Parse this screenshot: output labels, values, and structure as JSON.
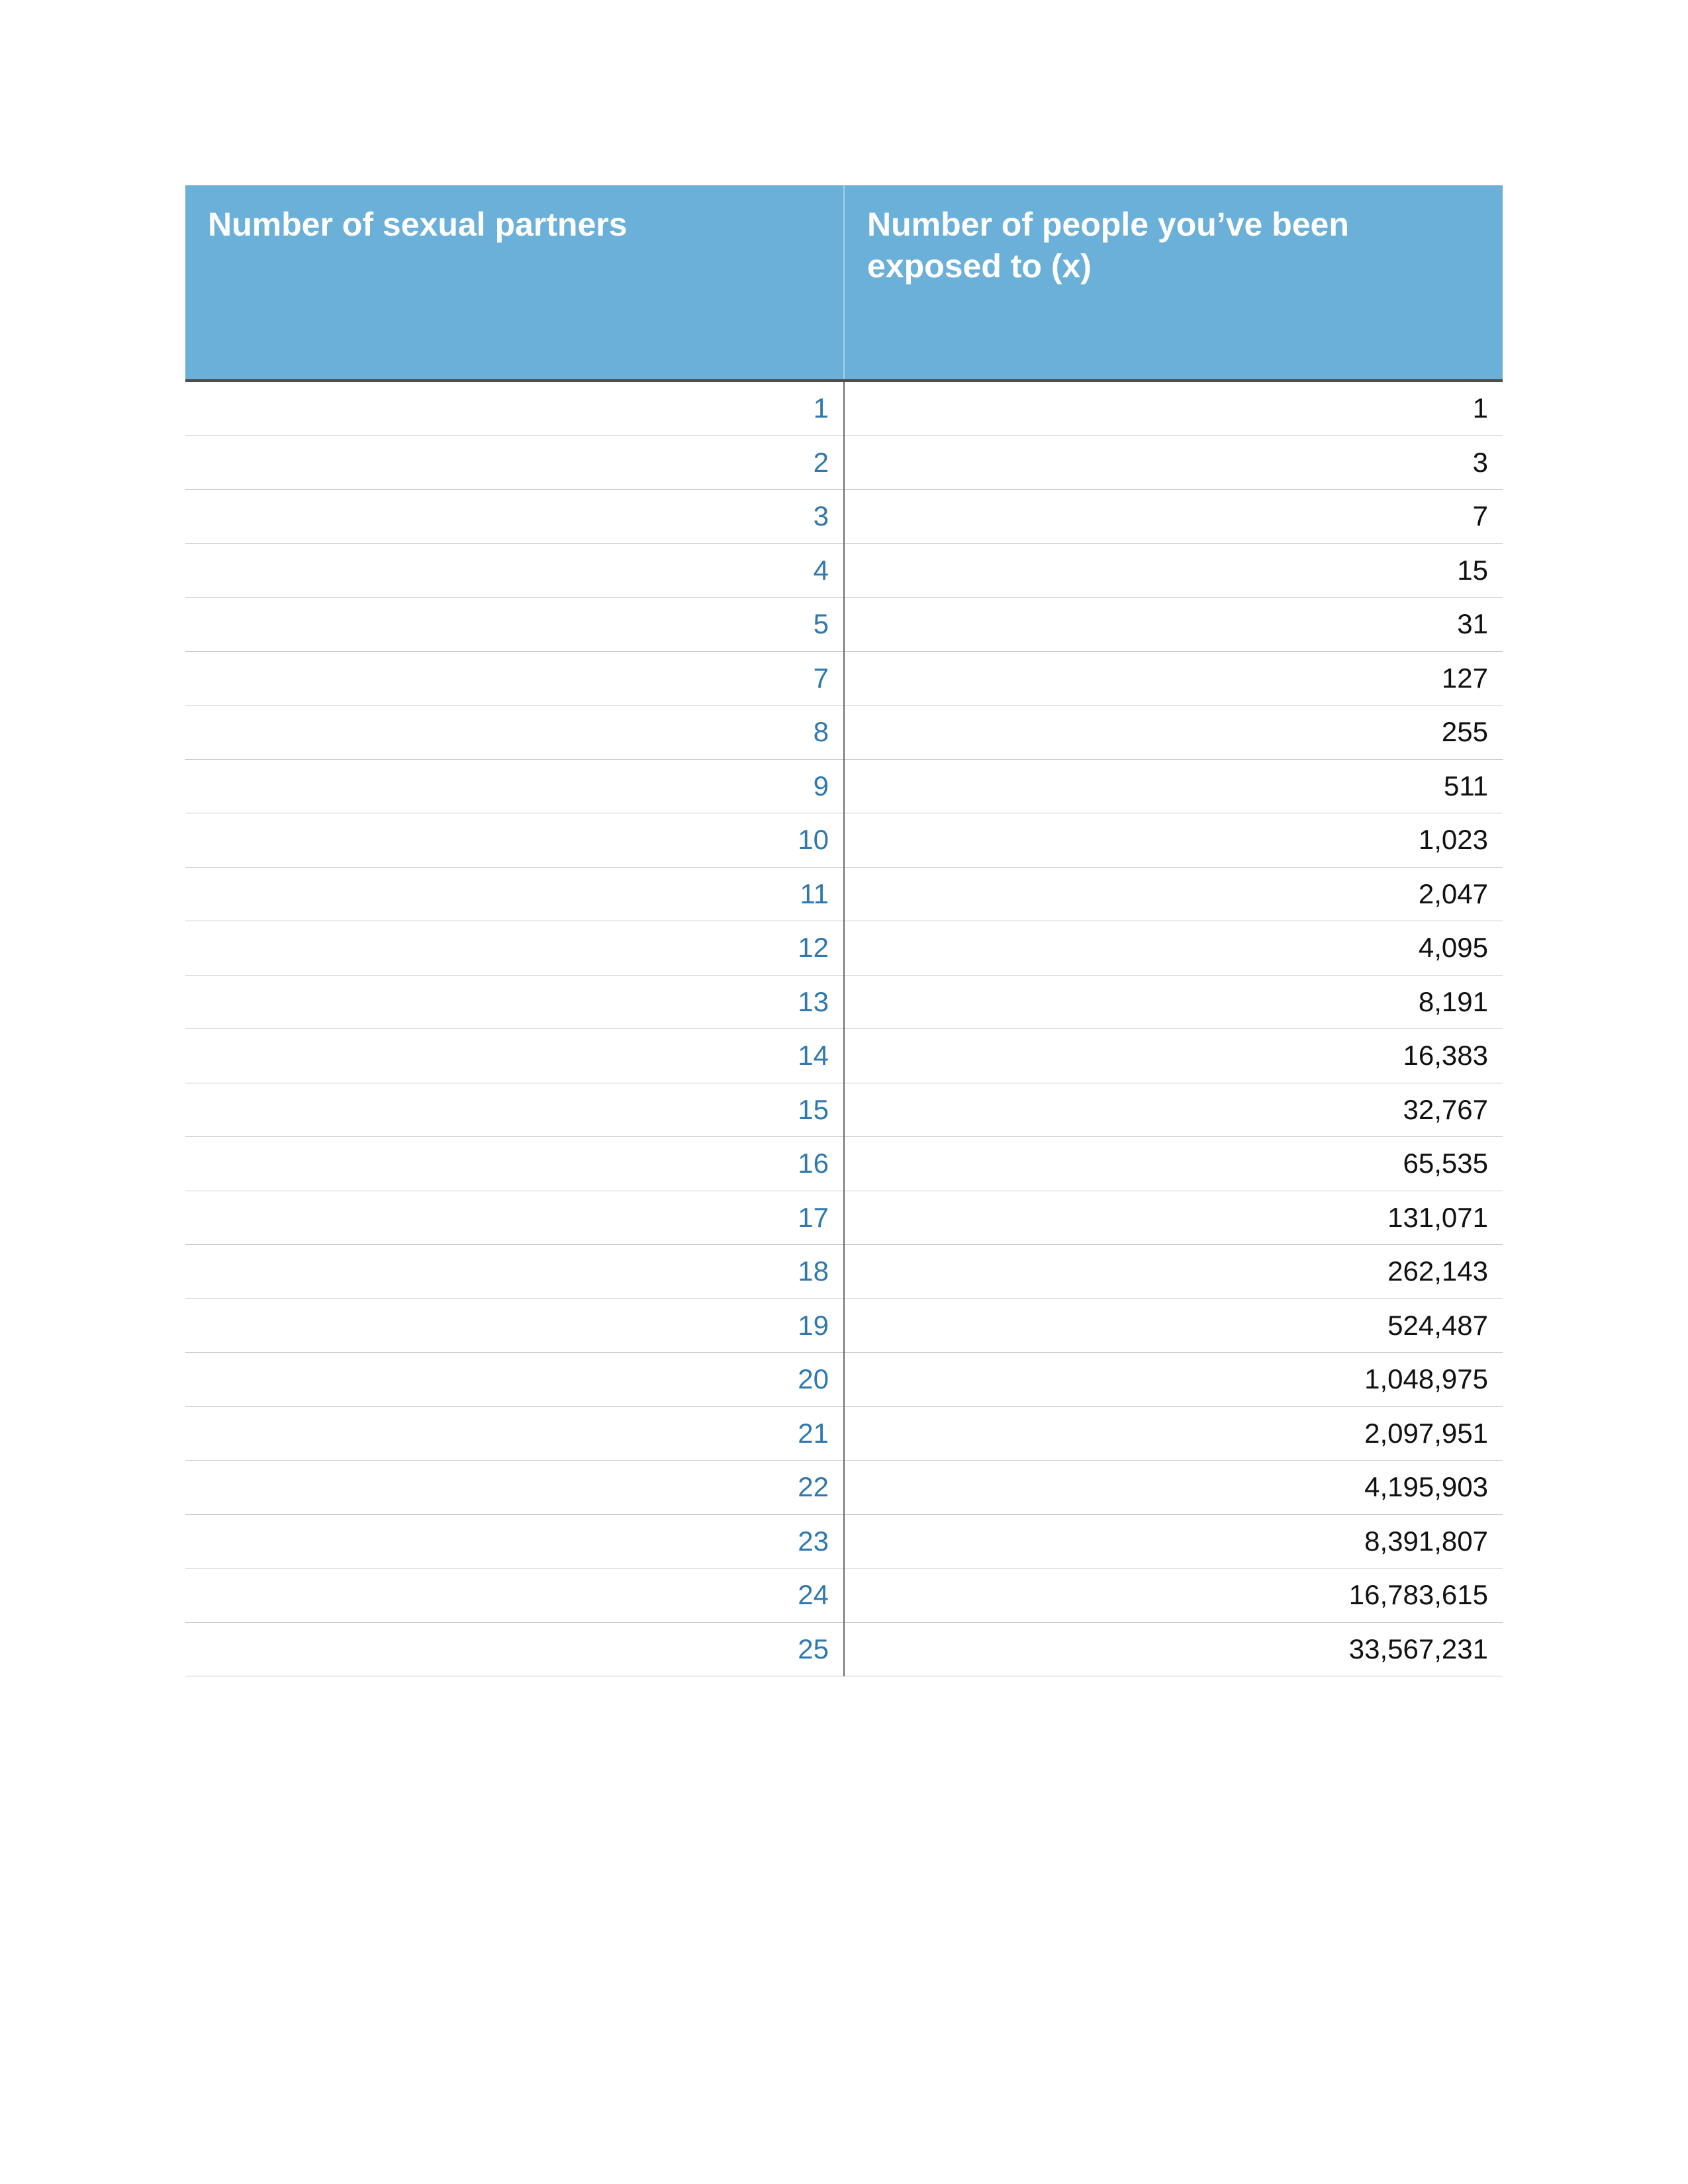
{
  "table": {
    "type": "table",
    "header_bg_color": "#6bb0d8",
    "header_text_color": "#ffffff",
    "header_fontsize": 50,
    "header_fontweight": "bold",
    "row_border_color": "#c9c9c9",
    "header_bottom_border_color": "#4d4d4d",
    "column_divider_color": "#6b6b6b",
    "left_column_text_color": "#2f79b0",
    "right_column_text_color": "#111111",
    "body_fontsize": 42,
    "text_align": "right",
    "columns": [
      "Number of sexual partners",
      "Number of people you’ve been exposed to (x)"
    ],
    "rows": [
      {
        "partners": "1",
        "exposed": "1"
      },
      {
        "partners": "2",
        "exposed": "3"
      },
      {
        "partners": "3",
        "exposed": "7"
      },
      {
        "partners": "4",
        "exposed": "15"
      },
      {
        "partners": "5",
        "exposed": "31"
      },
      {
        "partners": "7",
        "exposed": "127"
      },
      {
        "partners": "8",
        "exposed": "255"
      },
      {
        "partners": "9",
        "exposed": "511"
      },
      {
        "partners": "10",
        "exposed": "1,023"
      },
      {
        "partners": "11",
        "exposed": "2,047"
      },
      {
        "partners": "12",
        "exposed": "4,095"
      },
      {
        "partners": "13",
        "exposed": "8,191"
      },
      {
        "partners": "14",
        "exposed": "16,383"
      },
      {
        "partners": "15",
        "exposed": "32,767"
      },
      {
        "partners": "16",
        "exposed": "65,535"
      },
      {
        "partners": "17",
        "exposed": "131,071"
      },
      {
        "partners": "18",
        "exposed": "262,143"
      },
      {
        "partners": "19",
        "exposed": "524,487"
      },
      {
        "partners": "20",
        "exposed": "1,048,975"
      },
      {
        "partners": "21",
        "exposed": "2,097,951"
      },
      {
        "partners": "22",
        "exposed": "4,195,903"
      },
      {
        "partners": "23",
        "exposed": "8,391,807"
      },
      {
        "partners": "24",
        "exposed": "16,783,615"
      },
      {
        "partners": "25",
        "exposed": "33,567,231"
      }
    ]
  }
}
